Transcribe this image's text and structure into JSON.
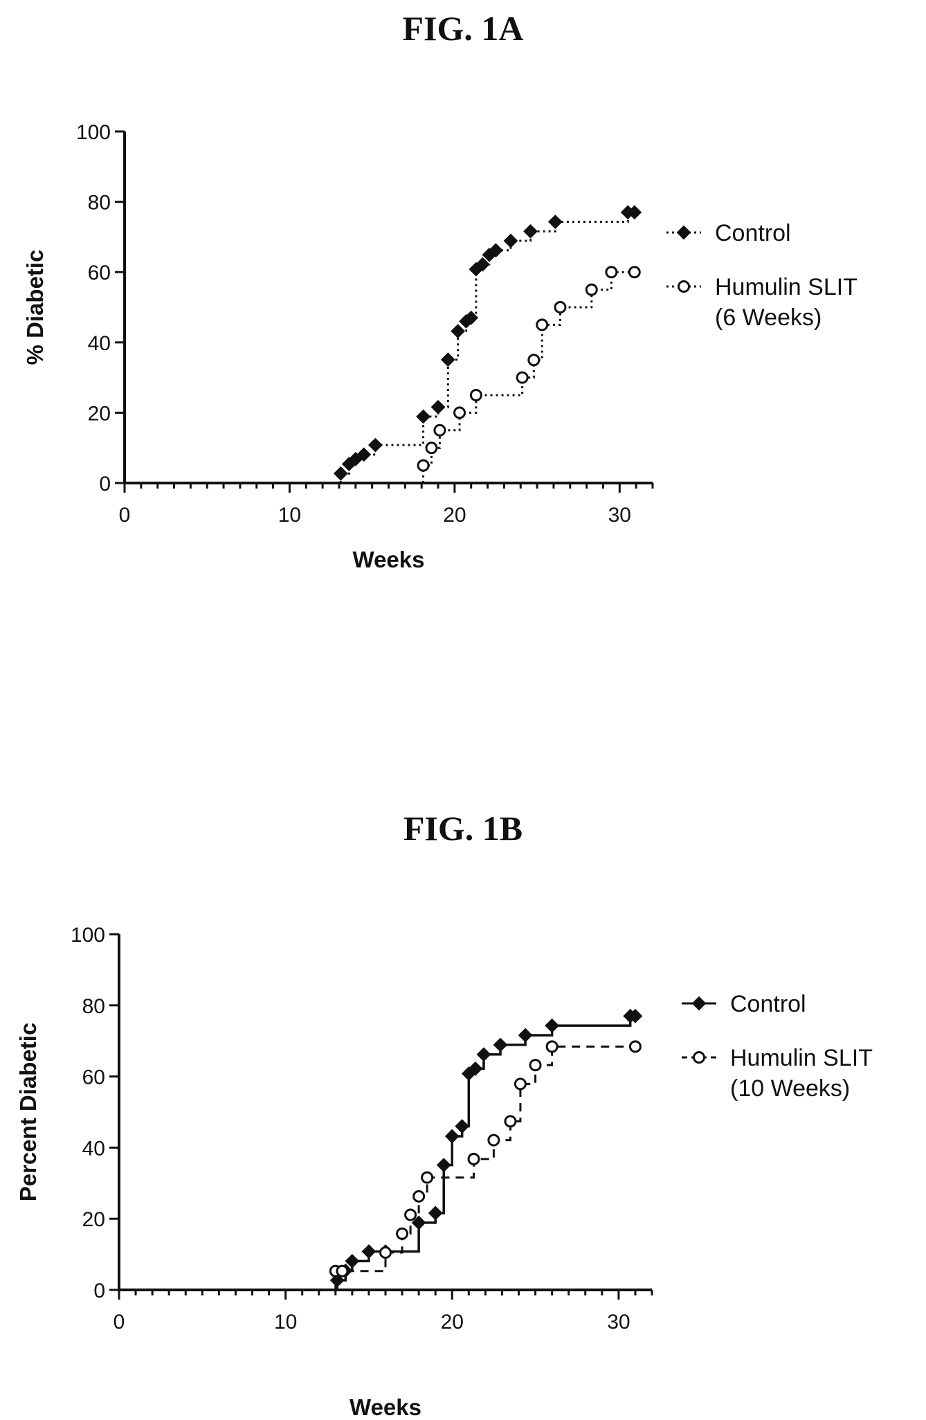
{
  "chart_data": [
    {
      "type": "line",
      "title": "FIG. 1A",
      "xlabel": "Weeks",
      "ylabel": "% Diabetic",
      "xlim": [
        0,
        32
      ],
      "ylim": [
        0,
        100
      ],
      "x_ticks": [
        0,
        10,
        20,
        30
      ],
      "y_ticks": [
        0,
        20,
        40,
        60,
        80,
        100
      ],
      "legend": {
        "placement": "right"
      },
      "series": [
        {
          "name": "Control",
          "marker": "filled-diamond",
          "line": "dotted",
          "color": "#111111",
          "points": [
            [
              13.1,
              2.7
            ],
            [
              13.6,
              5.4
            ],
            [
              14.0,
              6.8
            ],
            [
              14.5,
              8.1
            ],
            [
              15.2,
              10.8
            ],
            [
              18.1,
              18.9
            ],
            [
              19.0,
              21.6
            ],
            [
              19.6,
              35.1
            ],
            [
              20.2,
              43.2
            ],
            [
              20.7,
              46.0
            ],
            [
              21.0,
              47.0
            ],
            [
              21.3,
              60.8
            ],
            [
              21.7,
              62.2
            ],
            [
              22.1,
              64.9
            ],
            [
              22.5,
              66.2
            ],
            [
              23.4,
              68.9
            ],
            [
              24.6,
              71.6
            ],
            [
              26.1,
              74.3
            ],
            [
              30.5,
              77.0
            ],
            [
              30.9,
              77.0
            ]
          ]
        },
        {
          "name": "Humulin SLIT (6 Weeks)",
          "marker": "open-circle",
          "line": "dotted",
          "color": "#111111",
          "points": [
            [
              18.1,
              5.0
            ],
            [
              18.6,
              10.0
            ],
            [
              19.1,
              15.0
            ],
            [
              20.3,
              20.0
            ],
            [
              21.3,
              25.0
            ],
            [
              24.1,
              30.0
            ],
            [
              24.8,
              35.0
            ],
            [
              25.3,
              45.0
            ],
            [
              26.4,
              50.0
            ],
            [
              28.3,
              55.0
            ],
            [
              29.5,
              60.0
            ],
            [
              30.9,
              60.0
            ]
          ]
        }
      ]
    },
    {
      "type": "line",
      "title": "FIG. 1B",
      "xlabel": "Weeks",
      "ylabel": "Percent Diabetic",
      "xlim": [
        0,
        32
      ],
      "ylim": [
        0,
        100
      ],
      "x_ticks": [
        0,
        10,
        20,
        30
      ],
      "y_ticks": [
        0,
        20,
        40,
        60,
        80,
        100
      ],
      "legend": {
        "placement": "right"
      },
      "series": [
        {
          "name": "Control",
          "marker": "filled-diamond",
          "line": "solid",
          "color": "#111111",
          "points": [
            [
              13.1,
              2.7
            ],
            [
              13.6,
              5.4
            ],
            [
              14.0,
              8.1
            ],
            [
              15.0,
              10.8
            ],
            [
              16.0,
              10.8
            ],
            [
              18.0,
              18.9
            ],
            [
              19.0,
              21.6
            ],
            [
              19.5,
              35.1
            ],
            [
              20.0,
              43.2
            ],
            [
              20.6,
              46.0
            ],
            [
              21.0,
              60.8
            ],
            [
              21.4,
              62.2
            ],
            [
              21.9,
              66.2
            ],
            [
              22.9,
              68.9
            ],
            [
              24.4,
              71.6
            ],
            [
              26.0,
              74.3
            ],
            [
              30.7,
              77.0
            ],
            [
              31.0,
              77.0
            ]
          ]
        },
        {
          "name": "Humulin SLIT (10 Weeks)",
          "marker": "open-circle",
          "line": "dashed",
          "color": "#111111",
          "points": [
            [
              13.0,
              5.3
            ],
            [
              13.4,
              5.3
            ],
            [
              16.0,
              10.5
            ],
            [
              17.0,
              15.8
            ],
            [
              17.5,
              21.1
            ],
            [
              18.0,
              26.3
            ],
            [
              18.5,
              31.6
            ],
            [
              21.3,
              36.8
            ],
            [
              22.5,
              42.1
            ],
            [
              23.5,
              47.4
            ],
            [
              24.1,
              57.9
            ],
            [
              25.0,
              63.2
            ],
            [
              26.0,
              68.4
            ],
            [
              31.0,
              68.4
            ]
          ]
        }
      ]
    }
  ]
}
